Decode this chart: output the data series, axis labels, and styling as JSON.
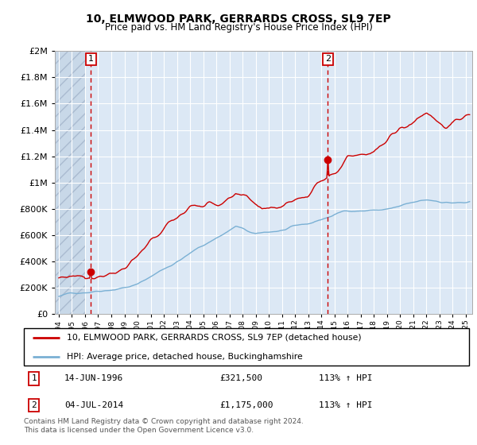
{
  "title": "10, ELMWOOD PARK, GERRARDS CROSS, SL9 7EP",
  "subtitle": "Price paid vs. HM Land Registry's House Price Index (HPI)",
  "ylim": [
    0,
    2000000
  ],
  "xlim_start": 1993.7,
  "xlim_end": 2025.5,
  "bg_color": "#dce8f5",
  "hatch_area_end": 1996.0,
  "grid_color": "#ffffff",
  "sale1_date": 1996.45,
  "sale1_price": 321500,
  "sale2_date": 2014.5,
  "sale2_price": 1175000,
  "legend_line1": "10, ELMWOOD PARK, GERRARDS CROSS, SL9 7EP (detached house)",
  "legend_line2": "HPI: Average price, detached house, Buckinghamshire",
  "footer": "Contains HM Land Registry data © Crown copyright and database right 2024.\nThis data is licensed under the Open Government Licence v3.0.",
  "red_color": "#cc0000",
  "blue_color": "#7ab0d4",
  "yticks": [
    0,
    200000,
    400000,
    600000,
    800000,
    1000000,
    1200000,
    1400000,
    1600000,
    1800000,
    2000000
  ],
  "ytick_labels": [
    "£0",
    "£200K",
    "£400K",
    "£600K",
    "£800K",
    "£1M",
    "£1.2M",
    "£1.4M",
    "£1.6M",
    "£1.8M",
    "£2M"
  ]
}
